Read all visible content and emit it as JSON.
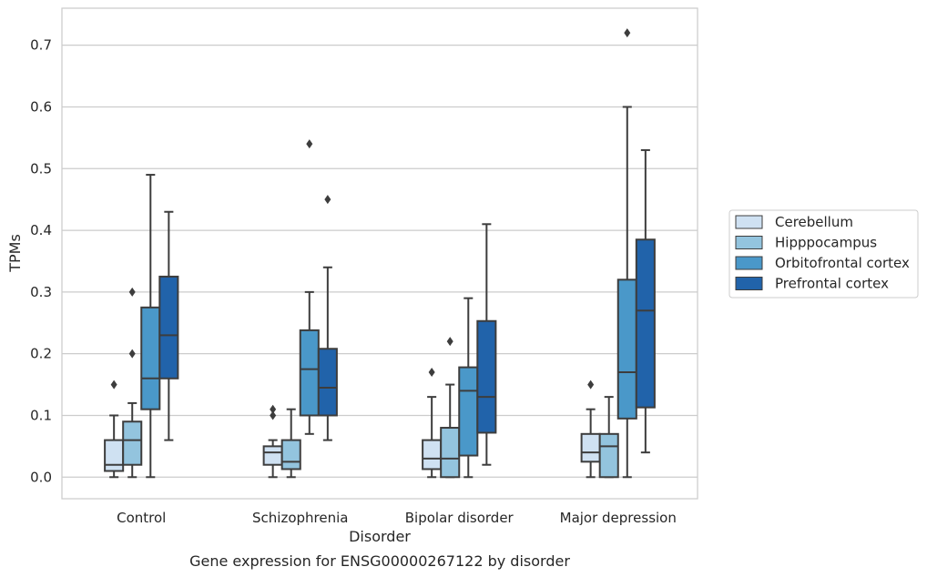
{
  "chart_data": {
    "type": "box",
    "caption": "Gene expression for ENSG00000267122 by disorder",
    "xlabel": "Disorder",
    "ylabel": "TPMs",
    "ylim": [
      -0.035,
      0.76
    ],
    "yticks": [
      "0.0",
      "0.1",
      "0.2",
      "0.3",
      "0.4",
      "0.5",
      "0.6",
      "0.7"
    ],
    "ytick_values": [
      0,
      0.1,
      0.2,
      0.3,
      0.4,
      0.5,
      0.6,
      0.7
    ],
    "grid": true,
    "legend_position": "right",
    "categories": [
      "Control",
      "Schizophrenia",
      "Bipolar disorder",
      "Major depression"
    ],
    "series": [
      {
        "name": "Cerebellum",
        "color": "#cfe1f2",
        "boxes": [
          {
            "whislo": 0.0,
            "q1": 0.01,
            "median": 0.02,
            "q3": 0.06,
            "whishi": 0.1,
            "fliers": [
              0.15
            ]
          },
          {
            "whislo": 0.0,
            "q1": 0.02,
            "median": 0.04,
            "q3": 0.05,
            "whishi": 0.06,
            "fliers": [
              0.1,
              0.11
            ]
          },
          {
            "whislo": 0.0,
            "q1": 0.013,
            "median": 0.03,
            "q3": 0.06,
            "whishi": 0.13,
            "fliers": [
              0.17
            ]
          },
          {
            "whislo": 0.0,
            "q1": 0.025,
            "median": 0.04,
            "q3": 0.07,
            "whishi": 0.11,
            "fliers": [
              0.15
            ]
          }
        ]
      },
      {
        "name": "Hipppocampus",
        "color": "#93c4de",
        "boxes": [
          {
            "whislo": 0.0,
            "q1": 0.02,
            "median": 0.06,
            "q3": 0.09,
            "whishi": 0.12,
            "fliers": [
              0.2,
              0.3
            ]
          },
          {
            "whislo": 0.0,
            "q1": 0.013,
            "median": 0.025,
            "q3": 0.06,
            "whishi": 0.11,
            "fliers": []
          },
          {
            "whislo": 0.0,
            "q1": 0.0,
            "median": 0.03,
            "q3": 0.08,
            "whishi": 0.15,
            "fliers": [
              0.22
            ]
          },
          {
            "whislo": 0.0,
            "q1": 0.0,
            "median": 0.05,
            "q3": 0.07,
            "whishi": 0.13,
            "fliers": []
          }
        ]
      },
      {
        "name": "Orbitofrontal cortex",
        "color": "#4a98c9",
        "boxes": [
          {
            "whislo": 0.0,
            "q1": 0.11,
            "median": 0.16,
            "q3": 0.275,
            "whishi": 0.49,
            "fliers": []
          },
          {
            "whislo": 0.07,
            "q1": 0.1,
            "median": 0.175,
            "q3": 0.238,
            "whishi": 0.3,
            "fliers": [
              0.54
            ]
          },
          {
            "whislo": 0.0,
            "q1": 0.035,
            "median": 0.14,
            "q3": 0.178,
            "whishi": 0.29,
            "fliers": []
          },
          {
            "whislo": 0.0,
            "q1": 0.095,
            "median": 0.17,
            "q3": 0.32,
            "whishi": 0.6,
            "fliers": [
              0.72
            ]
          }
        ]
      },
      {
        "name": "Prefrontal cortex",
        "color": "#2163aa",
        "boxes": [
          {
            "whislo": 0.06,
            "q1": 0.16,
            "median": 0.23,
            "q3": 0.325,
            "whishi": 0.43,
            "fliers": []
          },
          {
            "whislo": 0.06,
            "q1": 0.1,
            "median": 0.145,
            "q3": 0.208,
            "whishi": 0.34,
            "fliers": [
              0.45
            ]
          },
          {
            "whislo": 0.02,
            "q1": 0.072,
            "median": 0.13,
            "q3": 0.253,
            "whishi": 0.41,
            "fliers": []
          },
          {
            "whislo": 0.04,
            "q1": 0.113,
            "median": 0.27,
            "q3": 0.385,
            "whishi": 0.53,
            "fliers": []
          }
        ]
      }
    ]
  }
}
